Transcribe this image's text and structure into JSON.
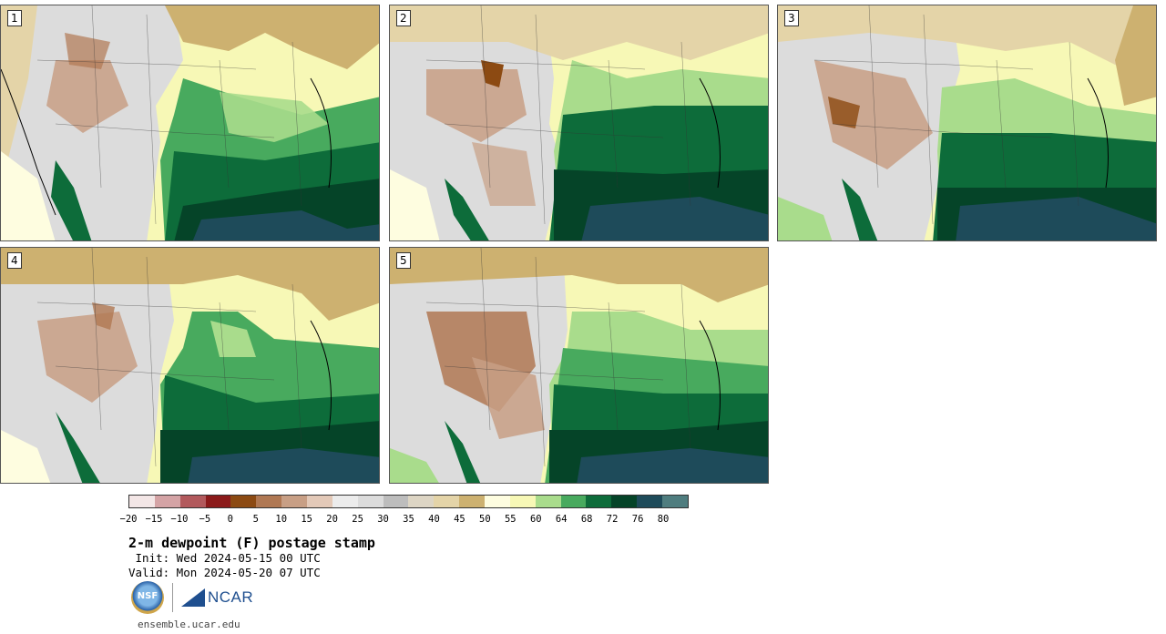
{
  "panels": [
    {
      "label": "1"
    },
    {
      "label": "2"
    },
    {
      "label": "3"
    },
    {
      "label": "4"
    },
    {
      "label": "5"
    }
  ],
  "colorbar": {
    "colors": [
      "#f3e6e6",
      "#d4a3a5",
      "#b2595c",
      "#8b1a1a",
      "#8c4a12",
      "#b07853",
      "#c89f85",
      "#e3c9b8",
      "#ececec",
      "#dcdcdc",
      "#bdbdbd",
      "#ddd5c4",
      "#e4d4a8",
      "#cdb170",
      "#fefde0",
      "#f7f8b6",
      "#a9dc8c",
      "#48aa5e",
      "#0d6c3a",
      "#054428",
      "#1e4b5a",
      "#4f7d7f"
    ],
    "ticks": [
      "−20",
      "−15",
      "−10",
      "−5",
      "0",
      "5",
      "10",
      "15",
      "20",
      "25",
      "30",
      "35",
      "40",
      "45",
      "50",
      "55",
      "60",
      "64",
      "68",
      "72",
      "76",
      "80"
    ]
  },
  "title": "2-m dewpoint (F) postage stamp",
  "init": " Init: Wed 2024-05-15 00 UTC",
  "valid": "Valid: Mon 2024-05-20 07 UTC",
  "logos": {
    "nsf": "NSF",
    "ncar": "NCAR"
  },
  "url": "ensemble.ucar.edu"
}
